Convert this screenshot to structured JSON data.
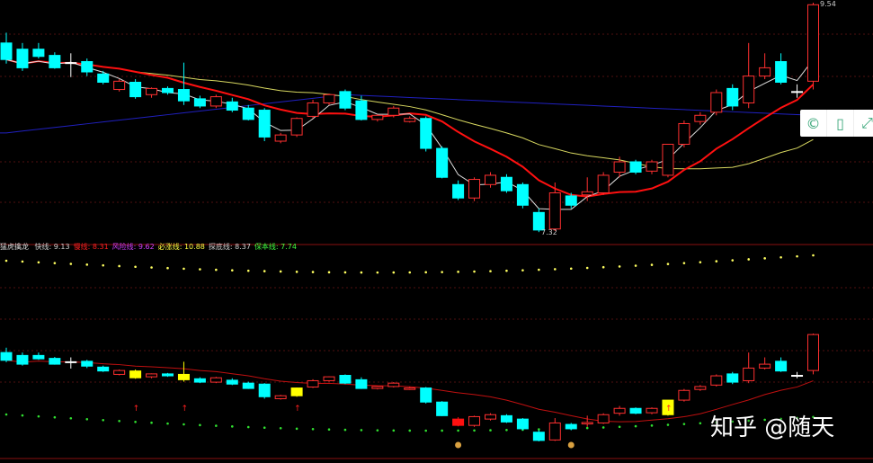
{
  "indicator": {
    "name": "猛虎擒龙",
    "items": [
      {
        "label": "快线: 9.13",
        "color": "#d0d0d0"
      },
      {
        "label": "慢线: 8.31",
        "color": "#ff2020"
      },
      {
        "label": "风险线: 9.62",
        "color": "#d040ff"
      },
      {
        "label": "必涨线: 10.88",
        "color": "#ffff40"
      },
      {
        "label": "探底线: 8.37",
        "color": "#d0d0d0"
      },
      {
        "label": "保本线: 7.74",
        "color": "#40ff40"
      }
    ]
  },
  "price_labels": {
    "high": "9.54",
    "low": "7.32"
  },
  "watermark": "知乎 @随天",
  "toolbar": {
    "icons": [
      "search-copyright-icon",
      "tablet-icon",
      "expand-icon"
    ]
  },
  "colors": {
    "up": "#ff3030",
    "down": "#00ffff",
    "ma_fast": "#e0e0e0",
    "ma_slow": "#ff1010",
    "ma_yellow": "#d8d860",
    "ma_blue": "#2020c0",
    "highlight": "#ffff00"
  },
  "candles": [
    [
      9.15,
      9.25,
      8.95,
      8.99
    ],
    [
      9.09,
      9.15,
      8.88,
      8.91
    ],
    [
      9.09,
      9.15,
      9.0,
      9.02
    ],
    [
      9.03,
      9.06,
      8.9,
      8.91
    ],
    [
      8.96,
      9.05,
      8.82,
      8.96
    ],
    [
      8.97,
      9.0,
      8.83,
      8.87
    ],
    [
      8.85,
      8.88,
      8.75,
      8.77
    ],
    [
      8.7,
      8.8,
      8.68,
      8.78
    ],
    [
      8.77,
      8.8,
      8.61,
      8.63
    ],
    [
      8.65,
      8.72,
      8.62,
      8.71
    ],
    [
      8.71,
      8.73,
      8.65,
      8.67
    ],
    [
      8.7,
      8.96,
      8.55,
      8.59
    ],
    [
      8.61,
      8.64,
      8.52,
      8.54
    ],
    [
      8.54,
      8.65,
      8.52,
      8.63
    ],
    [
      8.58,
      8.62,
      8.48,
      8.5
    ],
    [
      8.52,
      8.55,
      8.4,
      8.41
    ],
    [
      8.5,
      8.52,
      8.2,
      8.24
    ],
    [
      8.2,
      8.28,
      8.18,
      8.26
    ],
    [
      8.26,
      8.43,
      8.24,
      8.42
    ],
    [
      8.44,
      8.6,
      8.42,
      8.57
    ],
    [
      8.57,
      8.66,
      8.55,
      8.65
    ],
    [
      8.68,
      8.7,
      8.5,
      8.52
    ],
    [
      8.59,
      8.64,
      8.4,
      8.41
    ],
    [
      8.41,
      8.46,
      8.39,
      8.45
    ],
    [
      8.45,
      8.54,
      8.43,
      8.52
    ],
    [
      8.39,
      8.44,
      8.38,
      8.42
    ],
    [
      8.42,
      8.44,
      8.1,
      8.13
    ],
    [
      8.13,
      8.15,
      7.84,
      7.85
    ],
    [
      7.78,
      7.82,
      7.63,
      7.65
    ],
    [
      7.65,
      7.85,
      7.62,
      7.83
    ],
    [
      7.78,
      7.9,
      7.75,
      7.87
    ],
    [
      7.85,
      7.88,
      7.7,
      7.72
    ],
    [
      7.78,
      7.8,
      7.55,
      7.58
    ],
    [
      7.51,
      7.55,
      7.32,
      7.34
    ],
    [
      7.35,
      7.8,
      7.33,
      7.7
    ],
    [
      7.67,
      7.7,
      7.55,
      7.58
    ],
    [
      7.68,
      7.85,
      7.62,
      7.71
    ],
    [
      7.7,
      7.9,
      7.68,
      7.87
    ],
    [
      7.9,
      8.05,
      7.85,
      8.0
    ],
    [
      8.0,
      8.02,
      7.88,
      7.9
    ],
    [
      7.91,
      8.02,
      7.88,
      8.0
    ],
    [
      7.87,
      8.15,
      7.85,
      8.17
    ],
    [
      8.17,
      8.4,
      8.14,
      8.37
    ],
    [
      8.39,
      8.48,
      8.36,
      8.45
    ],
    [
      8.48,
      8.7,
      8.45,
      8.67
    ],
    [
      8.71,
      8.75,
      8.5,
      8.54
    ],
    [
      8.57,
      9.15,
      8.52,
      8.83
    ],
    [
      8.83,
      9.05,
      8.8,
      8.91
    ],
    [
      8.97,
      9.05,
      8.75,
      8.77
    ],
    [
      8.68,
      8.75,
      8.62,
      8.68
    ],
    [
      8.78,
      9.54,
      8.7,
      9.52
    ]
  ],
  "blue_line": {
    "index": [
      0,
      21,
      50
    ],
    "price": [
      8.28,
      8.65,
      8.45
    ]
  },
  "highlight_candles": [
    8,
    11,
    18,
    41
  ],
  "red_filled_candles": [
    28
  ],
  "buy_arrows": [
    8,
    11,
    18,
    41
  ],
  "money_bags": [
    28,
    35
  ]
}
